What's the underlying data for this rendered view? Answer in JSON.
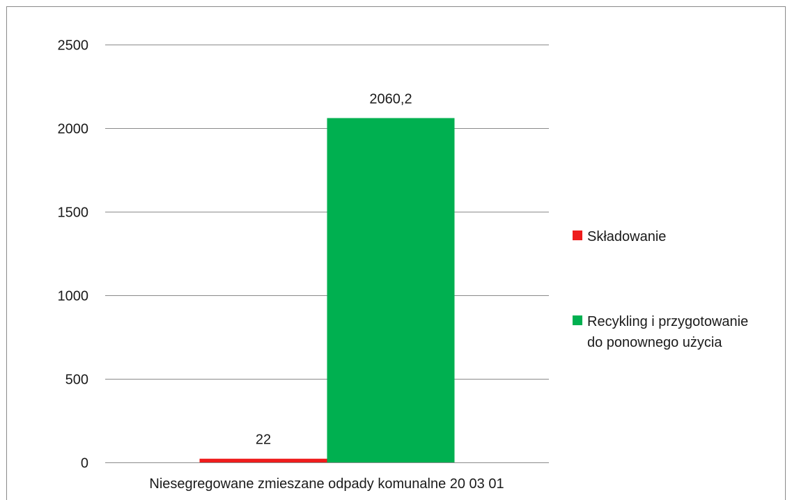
{
  "chart_data": {
    "type": "bar",
    "categories": [
      "Niesegregowane zmieszane odpady komunalne 20 03 01"
    ],
    "series": [
      {
        "name": "Składowanie",
        "values": [
          22
        ],
        "color": "#ee1c1c",
        "data_label": "22"
      },
      {
        "name": "Recykling i przygotowanie do ponownego użycia",
        "values": [
          2060.2
        ],
        "color": "#00b050",
        "data_label": "2060,2"
      }
    ],
    "ylim": [
      0,
      2500
    ],
    "yticks": [
      0,
      500,
      1000,
      1500,
      2000,
      2500
    ],
    "grid": true,
    "legend_position": "right",
    "title": "",
    "xlabel": "",
    "ylabel": ""
  },
  "legend": {
    "items": [
      {
        "lines": [
          "Składowanie"
        ]
      },
      {
        "lines": [
          "Recykling i przygotowanie",
          "do ponownego użycia"
        ]
      }
    ]
  }
}
